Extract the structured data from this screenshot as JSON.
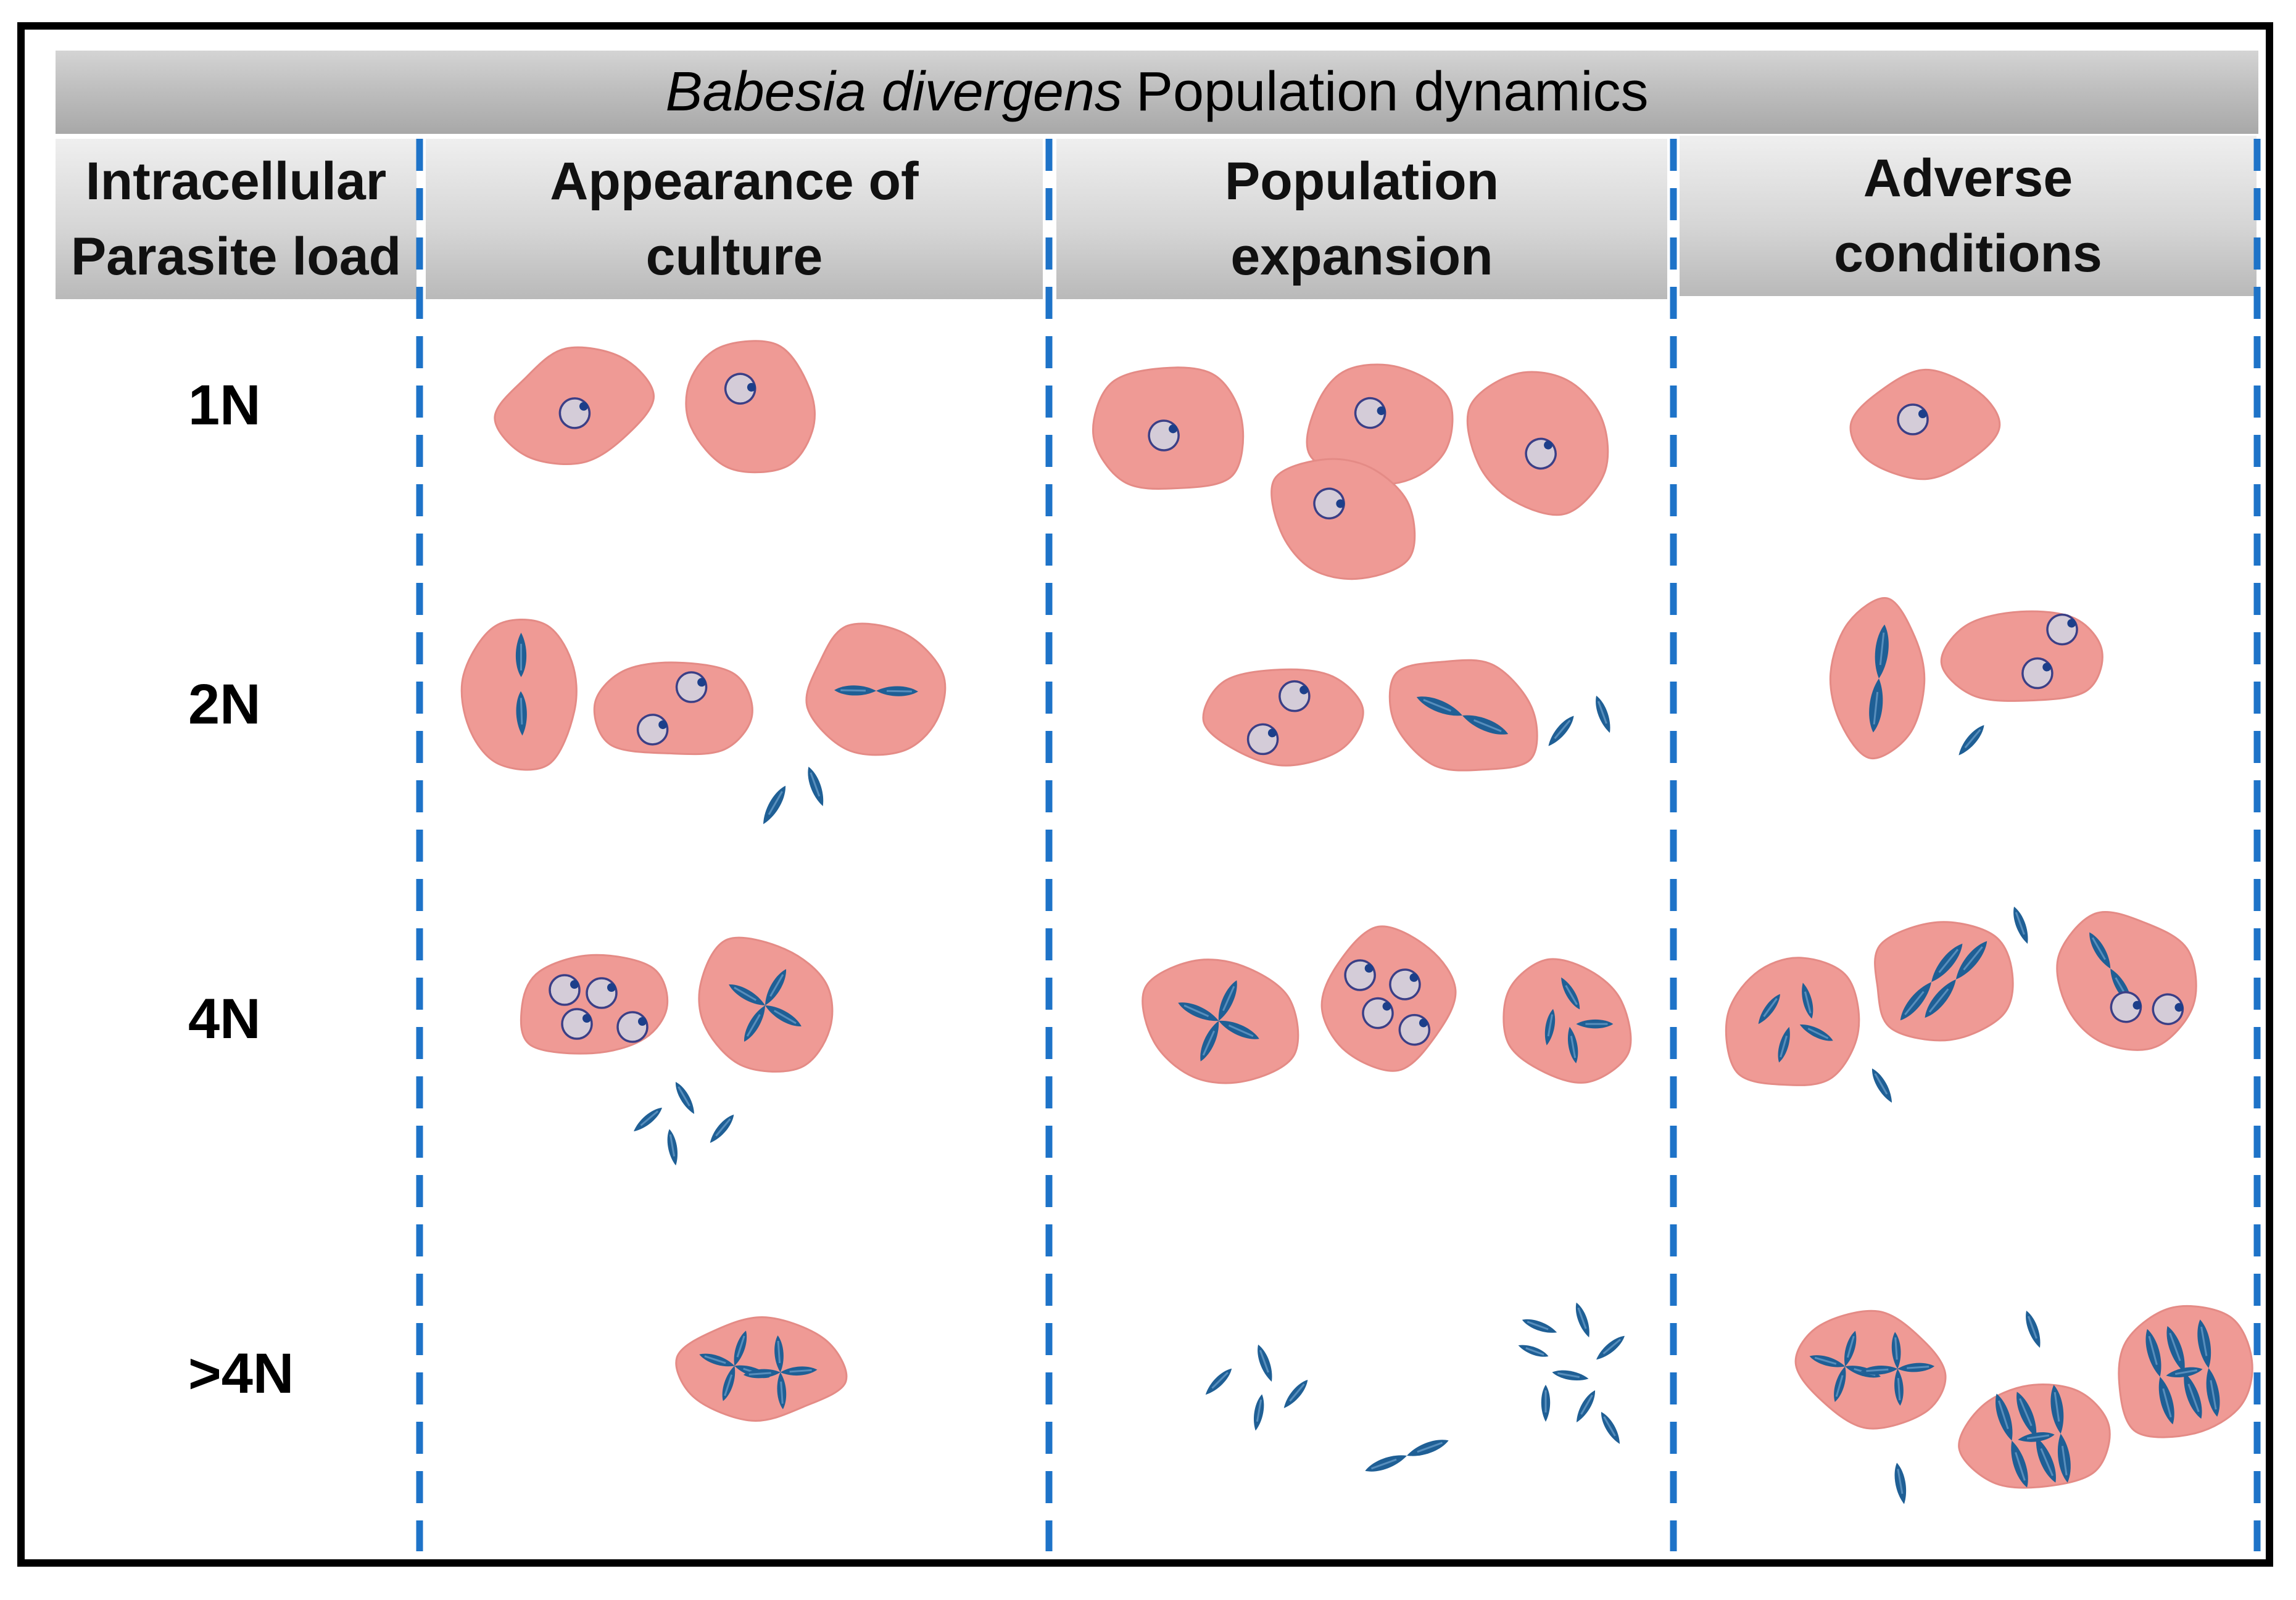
{
  "title": {
    "italic": "Babesia divergens",
    "rest": "Population dynamics"
  },
  "columns": [
    {
      "line1": "Intracellular",
      "line2": "Parasite load"
    },
    {
      "line1": "Appearance of",
      "line2": "culture"
    },
    {
      "line1": "Population",
      "line2": "expansion"
    },
    {
      "line1": "Adverse",
      "line2": "conditions"
    }
  ],
  "rows": [
    "1N",
    "2N",
    "4N",
    ">4N"
  ],
  "colors": {
    "cell": "#ef9a95",
    "cell_edge": "#e48b86",
    "parasite": "#1f5f95",
    "vacuole": "#d4ccd8",
    "divider": "#1e73c8"
  }
}
